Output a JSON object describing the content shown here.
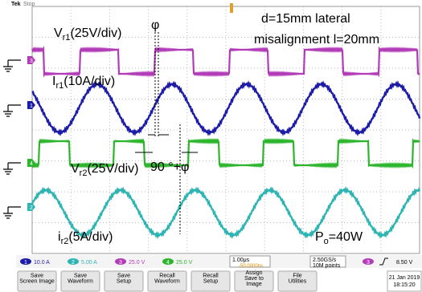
{
  "header": {
    "brand": "Tek",
    "status": "Stop"
  },
  "annotations": {
    "vr1": {
      "main": "V",
      "sub": "r1",
      "scale": "(25V/div)"
    },
    "ir1": {
      "main": "I",
      "sub": "r1",
      "scale": "(10A/div)"
    },
    "vr2": {
      "main": "V",
      "sub": "r2",
      "scale": "(25V/div)"
    },
    "ir2": {
      "main": "i",
      "sub": "r2",
      "scale": "(5A/div)"
    },
    "condition": [
      "d=15mm lateral",
      "misalignment l=20mm"
    ],
    "phi": "φ",
    "phase_shift": "90 °+φ",
    "power": {
      "main": "P",
      "sub": "o",
      "rest": "=40W"
    }
  },
  "channel_markers": [
    "3",
    "1",
    "4",
    "2"
  ],
  "status_bar": {
    "channels": [
      {
        "id": "1",
        "scale": "10.0 A"
      },
      {
        "id": "2",
        "scale": "5.00 A"
      },
      {
        "id": "3",
        "scale": "25.0 V"
      },
      {
        "id": "4",
        "scale": "25.0 V"
      }
    ],
    "timebase": "1.00μs",
    "delay": "-50.0000ns",
    "sample_rate": "2.50GS/s",
    "record": "10M points",
    "trigger_channel": "3",
    "trigger_level": "8.50 V"
  },
  "buttons": [
    [
      "Save",
      "Screen Image"
    ],
    [
      "Save",
      "Waveform"
    ],
    [
      "Save",
      "Setup"
    ],
    [
      "Recall",
      "Waveform"
    ],
    [
      "Recall",
      "Setup"
    ],
    [
      "Assign",
      "Save to",
      "Image"
    ],
    [
      "File",
      "Utilities"
    ]
  ],
  "datetime": [
    "21 Jan 2019",
    "18:15:20"
  ]
}
